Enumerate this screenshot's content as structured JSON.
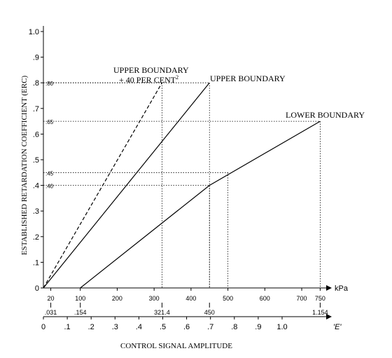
{
  "chart_data": {
    "type": "line",
    "title": "",
    "ylabel": "ESTABLISHED RETARDATION COEFFICIENT (ERC)",
    "xlabel": "CONTROL SIGNAL AMPLITUDE",
    "ylim": [
      0,
      1.0
    ],
    "yticks": [
      "0",
      ".1",
      ".2",
      ".3",
      ".4",
      ".5",
      ".6",
      ".7",
      ".8",
      ".9",
      "1.0"
    ],
    "kpa_axis": {
      "unit": "kPa",
      "ticks": [
        {
          "kpa": 20,
          "label": "20"
        },
        {
          "kpa": 100,
          "label": "100"
        },
        {
          "kpa": 200,
          "label": "200"
        },
        {
          "kpa": 300,
          "label": "300"
        },
        {
          "kpa": 400,
          "label": "400"
        },
        {
          "kpa": 500,
          "label": "500"
        },
        {
          "kpa": 600,
          "label": "600"
        },
        {
          "kpa": 700,
          "label": "700"
        },
        {
          "kpa": 750,
          "label": "750"
        }
      ],
      "sub_labels": [
        {
          "kpa": 20,
          "label": ".031"
        },
        {
          "kpa": 100,
          "label": ".154"
        },
        {
          "kpa": 321.4,
          "label": "321.4"
        },
        {
          "kpa": 450,
          "label": "450"
        },
        {
          "kpa": 750,
          "label": "1.154"
        }
      ]
    },
    "e_axis": {
      "label": "'E'",
      "ticks": [
        "0",
        ".1",
        ".2",
        ".3",
        ".4",
        ".5",
        ".6",
        ".7",
        ".8",
        ".9",
        "1.0"
      ]
    },
    "series": [
      {
        "name": "UPPER BOUNDARY + 40 PER CENT",
        "style": "dashed",
        "points": [
          [
            0,
            0
          ],
          [
            321.4,
            0.8
          ]
        ]
      },
      {
        "name": "UPPER BOUNDARY",
        "style": "solid",
        "points": [
          [
            0,
            0
          ],
          [
            450,
            0.8
          ]
        ]
      },
      {
        "name": "LOWER BOUNDARY",
        "style": "solid",
        "points": [
          [
            100,
            0
          ],
          [
            450,
            0.4
          ],
          [
            750,
            0.65
          ]
        ]
      }
    ],
    "reference_lines": [
      {
        "y": 0.8,
        "x": 450,
        "label": ".80"
      },
      {
        "y": 0.65,
        "x": 750,
        "label": ".65"
      },
      {
        "y": 0.45,
        "x": 500,
        "label": ".45"
      },
      {
        "y": 0.4,
        "x": 450,
        "label": ".40"
      },
      {
        "y": 0.8,
        "x": 321.4,
        "label": ""
      }
    ],
    "annotations": {
      "upper_plus40_line1": "UPPER BOUNDARY",
      "upper_plus40_line2": "+ 40 PER CENT",
      "upper_plus40_sup": "2",
      "upper": "UPPER BOUNDARY",
      "lower": "LOWER BOUNDARY"
    },
    "grid": false,
    "legend": "none"
  }
}
